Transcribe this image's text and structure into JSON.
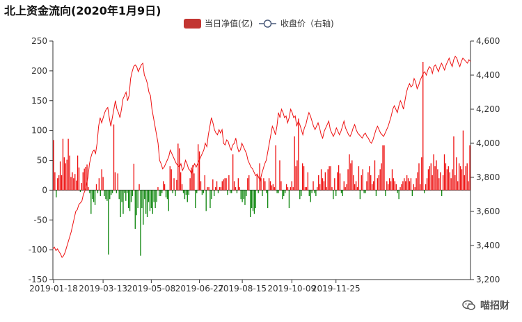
{
  "chart_data": {
    "type": "bar+line",
    "title": "北上资金流向(2020年1月9日)",
    "legend": [
      {
        "name": "当日净值(亿)",
        "color": "#c23531",
        "kind": "bar"
      },
      {
        "name": "收盘价（右轴)",
        "color": "#4a5a7a",
        "kind": "line"
      }
    ],
    "legend_position": "top-center",
    "x_tick_labels": [
      "2019-01-18",
      "2019-03-13",
      "2019-05-08",
      "2019-06-27",
      "2019-08-15",
      "2019-10-09",
      "2019-11-25"
    ],
    "x_tick_indices": [
      0,
      37,
      73,
      109,
      141,
      178,
      211
    ],
    "y_left": {
      "min": -150,
      "max": 250,
      "ticks": [
        -150,
        -100,
        -50,
        0,
        50,
        100,
        150,
        200,
        250
      ]
    },
    "y_right": {
      "min": 3200,
      "max": 4600,
      "ticks": [
        3200,
        3400,
        3600,
        3800,
        4000,
        4200,
        4400,
        4600
      ]
    },
    "colors": {
      "positive": "#ee1111",
      "negative": "#118811",
      "line": "#ee1111"
    },
    "bars": [
      84,
      30,
      -12,
      20,
      25,
      48,
      25,
      86,
      55,
      45,
      51,
      86,
      58,
      22,
      30,
      20,
      27,
      16,
      58,
      38,
      -3,
      12,
      30,
      36,
      39,
      43,
      5,
      -5,
      -40,
      -15,
      -20,
      -25,
      10,
      -5,
      20,
      -10,
      35,
      22,
      -10,
      -15,
      -18,
      -108,
      -15,
      -8,
      -5,
      110,
      30,
      -5,
      28,
      -15,
      -45,
      -20,
      -40,
      -5,
      -18,
      -5,
      -30,
      -35,
      -20,
      -10,
      44,
      -65,
      -42,
      -30,
      10,
      -110,
      -30,
      -58,
      -15,
      -40,
      -45,
      -20,
      -35,
      -30,
      -40,
      -20,
      -30,
      -20,
      5,
      -10,
      -10,
      -5,
      15,
      10,
      -12,
      -15,
      -35,
      40,
      35,
      -5,
      20,
      -10,
      17,
      78,
      70,
      30,
      10,
      -5,
      -15,
      -8,
      -20,
      -8,
      20,
      38,
      42,
      28,
      -30,
      -5,
      77,
      65,
      15,
      -8,
      -5,
      25,
      -35,
      5,
      5,
      -30,
      -15,
      18,
      -10,
      5,
      15,
      -5,
      5,
      5,
      15,
      18,
      20,
      20,
      -8,
      25,
      -5,
      -5,
      60,
      15,
      5,
      -5,
      20,
      5,
      -15,
      -20,
      -15,
      -25,
      -10,
      20,
      25,
      -45,
      -30,
      -35,
      -40,
      -30,
      25,
      -5,
      45,
      20,
      -10,
      20,
      15,
      -5,
      -30,
      20,
      15,
      8,
      10,
      5,
      75,
      -5,
      -5,
      50,
      15,
      -15,
      -10,
      -5,
      10,
      5,
      -30,
      5,
      15,
      5,
      90,
      40,
      50,
      120,
      -15,
      -10,
      45,
      40,
      5,
      5,
      30,
      -10,
      -20,
      -5,
      15,
      -5,
      -10,
      5,
      25,
      10,
      35,
      20,
      15,
      30,
      5,
      35,
      40,
      40,
      5,
      -15,
      20,
      -10,
      30,
      42,
      28,
      -5,
      -10,
      15,
      5,
      10,
      35,
      60,
      45,
      50,
      25,
      10,
      15,
      5,
      40,
      -15,
      25,
      35,
      -5,
      -5,
      15,
      30,
      40,
      25,
      10,
      15,
      50,
      -10,
      20,
      25,
      35,
      45,
      75,
      75,
      -10,
      15,
      10,
      20,
      15,
      35,
      20,
      15,
      10,
      -5,
      -15,
      5,
      10,
      15,
      20,
      15,
      25,
      20,
      15,
      20,
      -10,
      10,
      5,
      20,
      30,
      45,
      10,
      55,
      215,
      -5,
      10,
      20,
      35,
      40,
      45,
      25,
      60,
      40,
      50,
      35,
      20,
      30,
      -10,
      25,
      60,
      45,
      35,
      40,
      30,
      20,
      35,
      90,
      25,
      55,
      15,
      45,
      40,
      35,
      100,
      25,
      40,
      45,
      15,
      75
    ],
    "close": [
      3380,
      3390,
      3370,
      3380,
      3365,
      3350,
      3330,
      3340,
      3360,
      3390,
      3420,
      3450,
      3480,
      3520,
      3560,
      3600,
      3610,
      3640,
      3650,
      3660,
      3700,
      3720,
      3760,
      3800,
      3880,
      3920,
      3950,
      3960,
      3940,
      4000,
      4100,
      4150,
      4120,
      4150,
      4180,
      4200,
      4210,
      4150,
      4100,
      4150,
      4200,
      4250,
      4200,
      4180,
      4150,
      4200,
      4260,
      4280,
      4300,
      4250,
      4280,
      4380,
      4420,
      4450,
      4460,
      4450,
      4420,
      4440,
      4460,
      4470,
      4400,
      4380,
      4350,
      4300,
      4280,
      4200,
      4150,
      4100,
      4050,
      4000,
      3900,
      3880,
      3850,
      3860,
      3880,
      3900,
      3920,
      3960,
      3940,
      3920,
      3900,
      3880,
      3870,
      3860,
      3880,
      3840,
      3860,
      3900,
      3880,
      3850,
      3840,
      3820,
      3860,
      3880,
      3860,
      3880,
      3900,
      3920,
      3940,
      3960,
      4000,
      3980,
      4050,
      4100,
      4150,
      4120,
      4080,
      4060,
      4050,
      4080,
      4060,
      4080,
      4000,
      3990,
      4020,
      4010,
      3980,
      3960,
      3990,
      4000,
      4030,
      3980,
      3950,
      3960,
      4000,
      3980,
      3960,
      3940,
      3900,
      3880,
      3860,
      3850,
      3830,
      3810,
      3820,
      3800,
      3780,
      3820,
      3850,
      3880,
      3900,
      3950,
      4000,
      4050,
      4100,
      4080,
      4050,
      4100,
      4180,
      4150,
      4200,
      4180,
      4150,
      4160,
      4120,
      4150,
      4200,
      4180,
      4150,
      4160,
      4100,
      4130,
      4110,
      4080,
      4050,
      4090,
      4110,
      4150,
      4180,
      4160,
      4130,
      4100,
      4080,
      4100,
      4120,
      4090,
      4050,
      4030,
      4070,
      4090,
      4110,
      4130,
      4080,
      4060,
      4040,
      4060,
      4090,
      4070,
      4050,
      4070,
      4100,
      4130,
      4090,
      4070,
      4050,
      4040,
      4060,
      4090,
      4110,
      4080,
      4060,
      4050,
      4040,
      4030,
      4050,
      4060,
      4040,
      4030,
      4010,
      4000,
      4020,
      4050,
      4080,
      4100,
      4080,
      4060,
      4050,
      4040,
      4060,
      4080,
      4100,
      4130,
      4160,
      4200,
      4220,
      4200,
      4180,
      4220,
      4250,
      4230,
      4200,
      4250,
      4300,
      4330,
      4350,
      4330,
      4340,
      4380,
      4360,
      4320,
      4340,
      4370,
      4390,
      4410,
      4420,
      4400,
      4430,
      4450,
      4440,
      4410,
      4450,
      4460,
      4440,
      4420,
      4450,
      4470,
      4450,
      4430,
      4460,
      4480,
      4500,
      4470,
      4450,
      4490,
      4510,
      4500,
      4470,
      4450,
      4480,
      4500,
      4490,
      4480,
      4470,
      4490,
      4480
    ]
  },
  "watermark": {
    "text": "喵招财"
  }
}
